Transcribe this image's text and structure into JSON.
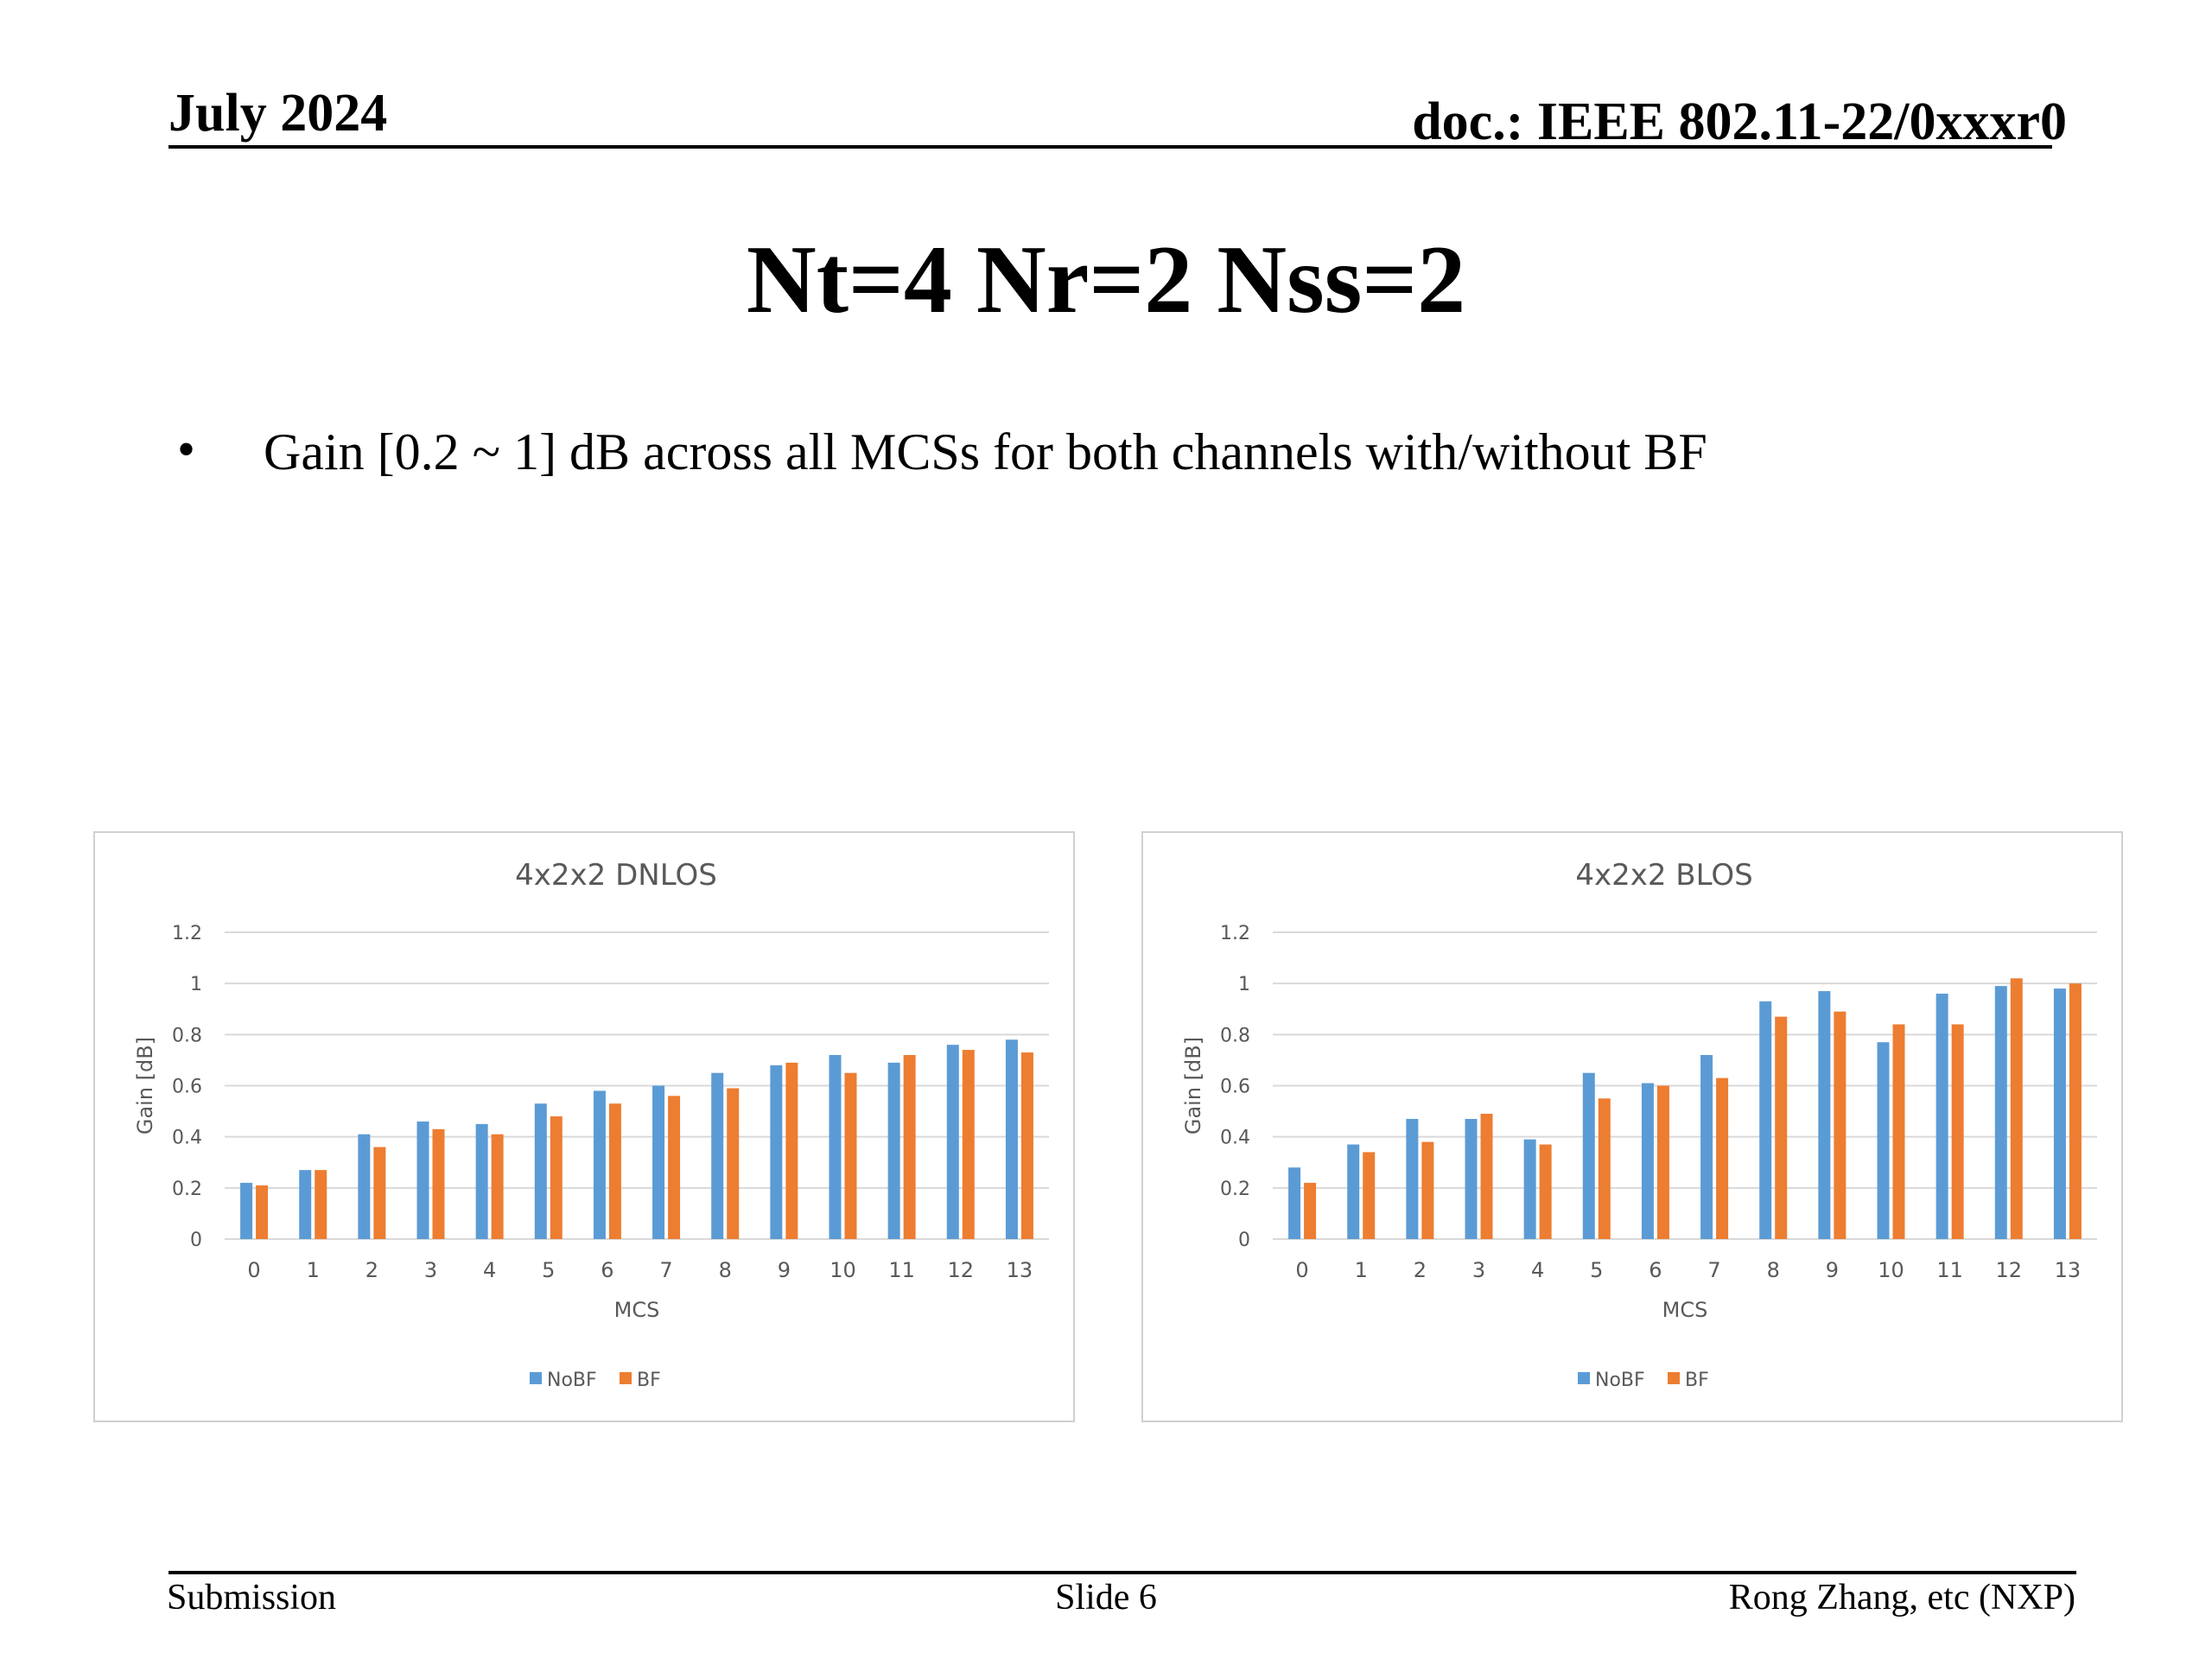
{
  "header": {
    "date": "July 2024",
    "doc": "doc.: IEEE 802.11-22/0xxxr0"
  },
  "slide": {
    "title": "Nt=4 Nr=2 Nss=2",
    "bullet_symbol": "•",
    "bullet": "Gain [0.2 ~ 1] dB across all MCSs for both channels with/without BF"
  },
  "footer": {
    "left": "Submission",
    "center": "Slide 6",
    "right": "Rong Zhang, etc (NXP)"
  },
  "colors": {
    "NoBF": "#5B9BD5",
    "BF": "#ED7D31",
    "grid": "#D9D9D9",
    "text": "#595959"
  },
  "chart_data": [
    {
      "type": "bar",
      "title": "4x2x2 DNLOS",
      "xlabel": "MCS",
      "ylabel": "Gain [dB]",
      "ylim": [
        0,
        1.2
      ],
      "yticks": [
        "0",
        "0.2",
        "0.4",
        "0.6",
        "0.8",
        "1",
        "1.2"
      ],
      "grid": true,
      "legend": "bottom",
      "categories": [
        "0",
        "1",
        "2",
        "3",
        "4",
        "5",
        "6",
        "7",
        "8",
        "9",
        "10",
        "11",
        "12",
        "13"
      ],
      "series": [
        {
          "name": "NoBF",
          "values": [
            0.22,
            0.27,
            0.41,
            0.46,
            0.45,
            0.53,
            0.58,
            0.6,
            0.65,
            0.68,
            0.72,
            0.69,
            0.76,
            0.78
          ]
        },
        {
          "name": "BF",
          "values": [
            0.21,
            0.27,
            0.36,
            0.43,
            0.41,
            0.48,
            0.53,
            0.56,
            0.59,
            0.69,
            0.65,
            0.72,
            0.74,
            0.73
          ]
        }
      ]
    },
    {
      "type": "bar",
      "title": "4x2x2 BLOS",
      "xlabel": "MCS",
      "ylabel": "Gain [dB]",
      "ylim": [
        0,
        1.2
      ],
      "yticks": [
        "0",
        "0.2",
        "0.4",
        "0.6",
        "0.8",
        "1",
        "1.2"
      ],
      "grid": true,
      "legend": "bottom",
      "categories": [
        "0",
        "1",
        "2",
        "3",
        "4",
        "5",
        "6",
        "7",
        "8",
        "9",
        "10",
        "11",
        "12",
        "13"
      ],
      "series": [
        {
          "name": "NoBF",
          "values": [
            0.28,
            0.37,
            0.47,
            0.47,
            0.39,
            0.65,
            0.61,
            0.72,
            0.93,
            0.97,
            0.77,
            0.96,
            0.99,
            0.98
          ]
        },
        {
          "name": "BF",
          "values": [
            0.22,
            0.34,
            0.38,
            0.49,
            0.37,
            0.55,
            0.6,
            0.63,
            0.87,
            0.89,
            0.84,
            0.84,
            1.02,
            1.0
          ]
        }
      ]
    }
  ]
}
